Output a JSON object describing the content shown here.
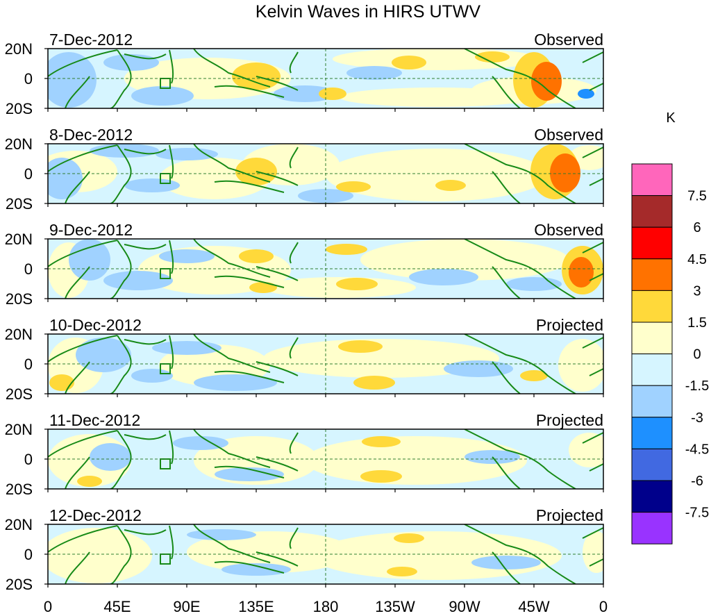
{
  "title": "Kelvin Waves in HIRS UTWV",
  "legend": {
    "unit": "K",
    "colors": [
      "#ff66bb",
      "#a52a2a",
      "#ff0000",
      "#ff7200",
      "#ffd93a",
      "#ffffcc",
      "#d6f5ff",
      "#a0d2ff",
      "#1e90ff",
      "#4169e1",
      "#00008b",
      "#9933ff"
    ],
    "labels": [
      "7.5",
      "6",
      "4.5",
      "3",
      "1.5",
      "0",
      "-1.5",
      "-3",
      "-4.5",
      "-6",
      "-7.5"
    ]
  },
  "lat_labels": [
    "20N",
    "0",
    "20S"
  ],
  "lon_labels": [
    "0",
    "45E",
    "90E",
    "135E",
    "180",
    "135W",
    "90W",
    "45W",
    "0"
  ],
  "panels": [
    {
      "date": "7-Dec-2012",
      "status": "Observed"
    },
    {
      "date": "8-Dec-2012",
      "status": "Observed"
    },
    {
      "date": "9-Dec-2012",
      "status": "Observed"
    },
    {
      "date": "10-Dec-2012",
      "status": "Projected"
    },
    {
      "date": "11-Dec-2012",
      "status": "Projected"
    },
    {
      "date": "12-Dec-2012",
      "status": "Projected"
    }
  ],
  "colors": {
    "coastline": "#178a17",
    "base_field": "#d6f5ff"
  }
}
